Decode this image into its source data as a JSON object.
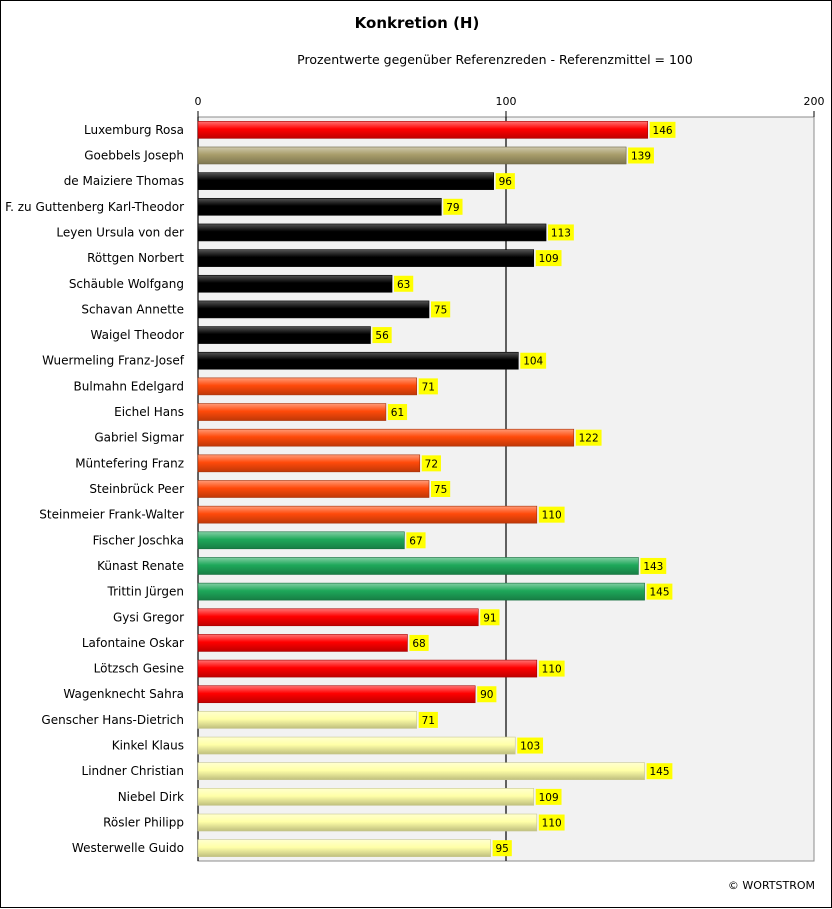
{
  "chart_data": {
    "type": "bar",
    "orientation": "horizontal",
    "title": "Konkretion (H)",
    "subtitle": "Prozentwerte  gegenüber Referenzreden - Referenzmittel = 100",
    "xlim": [
      0,
      200
    ],
    "xticks": [
      0,
      100,
      200
    ],
    "reference_line": 100,
    "grid": false,
    "legend": "none",
    "copyright": "© WORTSTROM",
    "colors": {
      "red": "#ff0000",
      "olive": "#a89d6a",
      "black": "#000000",
      "orange": "#ff4a0a",
      "green": "#1ea85a",
      "yellow": "#ffffa8",
      "label_bg": "#ffff00",
      "plot_bg": "#f2f2f2"
    },
    "categories": [
      "Luxemburg Rosa",
      "Goebbels Joseph",
      "de Maiziere Thomas",
      "F. zu Guttenberg Karl-Theodor",
      "Leyen Ursula von der",
      "Röttgen Norbert",
      "Schäuble Wolfgang",
      "Schavan Annette",
      "Waigel Theodor",
      "Wuermeling Franz-Josef",
      "Bulmahn Edelgard",
      "Eichel Hans",
      "Gabriel Sigmar",
      "Müntefering Franz",
      "Steinbrück Peer",
      "Steinmeier Frank-Walter",
      "Fischer Joschka",
      "Künast Renate",
      "Trittin Jürgen",
      "Gysi Gregor",
      "Lafontaine Oskar",
      "Lötzsch Gesine",
      "Wagenknecht Sahra",
      "Genscher Hans-Dietrich",
      "Kinkel Klaus",
      "Lindner Christian",
      "Niebel Dirk",
      "Rösler Philipp",
      "Westerwelle Guido"
    ],
    "values": [
      146,
      139,
      96,
      79,
      113,
      109,
      63,
      75,
      56,
      104,
      71,
      61,
      122,
      72,
      75,
      110,
      67,
      143,
      145,
      91,
      68,
      110,
      90,
      71,
      103,
      145,
      109,
      110,
      95
    ],
    "bar_colors": [
      "red",
      "olive",
      "black",
      "black",
      "black",
      "black",
      "black",
      "black",
      "black",
      "black",
      "orange",
      "orange",
      "orange",
      "orange",
      "orange",
      "orange",
      "green",
      "green",
      "green",
      "red",
      "red",
      "red",
      "red",
      "yellow",
      "yellow",
      "yellow",
      "yellow",
      "yellow",
      "yellow"
    ]
  }
}
